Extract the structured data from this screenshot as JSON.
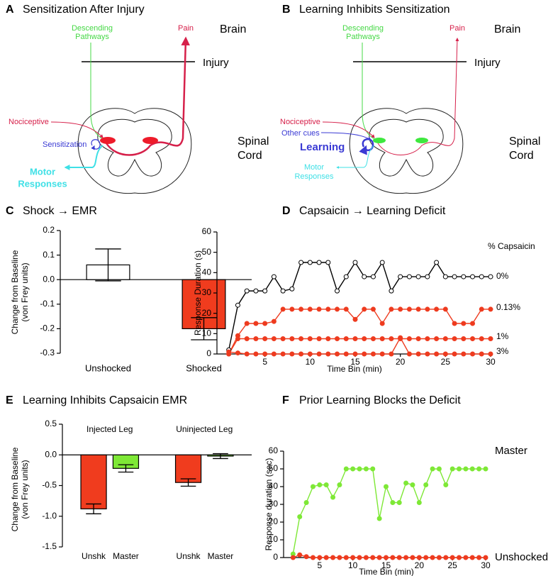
{
  "diagrams": [
    {
      "panel": "A",
      "title": "Sensitization After Injury",
      "descending": [
        "Descending",
        "Pathways"
      ],
      "pain": "Pain",
      "brain": "Brain",
      "injury": "Injury",
      "nociceptive": "Nociceptive",
      "sensitization": "Sensitization",
      "motor": [
        "Motor",
        "Responses"
      ],
      "spinal": [
        "Spinal",
        "Cord"
      ]
    },
    {
      "panel": "B",
      "title": "Learning Inhibits Sensitization",
      "descending": [
        "Descending",
        "Pathways"
      ],
      "pain": "Pain",
      "brain": "Brain",
      "injury": "Injury",
      "nociceptive": "Nociceptive",
      "other_cues": "Other cues",
      "learning": "Learning",
      "motor": [
        "Motor",
        "Responses"
      ],
      "spinal": [
        "Spinal",
        "Cord"
      ]
    }
  ],
  "chart_data": [
    {
      "type": "bar",
      "panel": "C",
      "title": "Shock → EMR",
      "ylabel": [
        "Change from Baseline",
        "(von Frey units)"
      ],
      "categories": [
        "Unshocked",
        "Shocked"
      ],
      "values": [
        0.06,
        -0.2
      ],
      "errors": [
        0.065,
        0.045
      ],
      "colors": [
        "#ffffff",
        "#f03c1e"
      ],
      "ylim": [
        -0.3,
        0.2
      ],
      "yticks": [
        0.2,
        0.1,
        {
          "value": 0,
          "label": "0.0"
        },
        -0.1,
        -0.2,
        -0.3
      ]
    },
    {
      "type": "line",
      "panel": "D",
      "title": "Capsaicin → Learning Deficit",
      "xlabel": "Time Bin (min)",
      "ylabel": "Response Duration (s)",
      "legend_title": "% Capsaicin",
      "x": [
        1,
        2,
        3,
        4,
        5,
        6,
        7,
        8,
        9,
        10,
        11,
        12,
        13,
        14,
        15,
        16,
        17,
        18,
        19,
        20,
        21,
        22,
        23,
        24,
        25,
        26,
        27,
        28,
        29,
        30
      ],
      "series": [
        {
          "name": "0%",
          "color": "#000000",
          "marker_face": "#ffffff",
          "values": [
            2,
            24,
            31,
            31,
            31,
            38,
            31,
            32,
            45,
            45,
            45,
            45,
            31,
            38,
            45,
            38,
            38,
            45,
            31,
            38,
            38,
            38,
            38,
            45,
            38,
            38,
            38,
            38,
            38,
            38
          ]
        },
        {
          "name": "0.13%",
          "color": "#ee3b1f",
          "marker_face": "#ee3b1f",
          "values": [
            0,
            9,
            15,
            15,
            15,
            16,
            22,
            22,
            22,
            22,
            22,
            22,
            22,
            22,
            17,
            22,
            22,
            15,
            22,
            22,
            22,
            22,
            22,
            22,
            22,
            15,
            15,
            15,
            22,
            22
          ]
        },
        {
          "name": "1%",
          "color": "#ee3b1f",
          "marker_face": "#ee3b1f",
          "values": [
            0,
            7.5,
            7.5,
            7.5,
            7.5,
            7.5,
            7.5,
            7.5,
            7.5,
            7.5,
            7.5,
            7.5,
            7.5,
            7.5,
            7.5,
            7.5,
            7.5,
            7.5,
            7.5,
            7.5,
            7.5,
            7.5,
            7.5,
            7.5,
            7.5,
            7.5,
            7.5,
            7.5,
            7.5,
            7.5
          ]
        },
        {
          "name": "3%",
          "color": "#ee3b1f",
          "marker_face": "#ee3b1f",
          "values": [
            1,
            0.5,
            0,
            0,
            0,
            0,
            0,
            0,
            0,
            0,
            0,
            0,
            0,
            0,
            0,
            0,
            0,
            0,
            0,
            8,
            0,
            0,
            0,
            0,
            0,
            0,
            0,
            0,
            0,
            0
          ]
        }
      ],
      "xlim": [
        0,
        30
      ],
      "xticks": [
        5,
        10,
        15,
        20,
        25,
        30
      ],
      "ylim": [
        0,
        60
      ],
      "yticks": [
        0,
        10,
        20,
        30,
        40,
        50,
        60
      ]
    },
    {
      "type": "bar",
      "panel": "E",
      "title": "Learning Inhibits Capsaicin EMR",
      "ylabel": [
        "Change from Baseline",
        "(von Frey units)"
      ],
      "categories": [
        "Injected Leg",
        "Uninjected Leg"
      ],
      "series": [
        {
          "name": "Unshk",
          "color": "#f03c1e",
          "values": [
            -0.88,
            -0.45
          ],
          "errors": [
            0.08,
            0.06
          ]
        },
        {
          "name": "Master",
          "color": "#7ee836",
          "values": [
            -0.22,
            -0.02
          ],
          "errors": [
            0.06,
            0.04
          ]
        }
      ],
      "ylim": [
        -1.5,
        0.5
      ],
      "yticks": [
        0.5,
        {
          "value": 0,
          "label": "0.0"
        },
        -0.5,
        {
          "value": -1,
          "label": "-1.0"
        },
        -1.5
      ]
    },
    {
      "type": "line",
      "panel": "F",
      "title": "Prior Learning Blocks the Deficit",
      "xlabel": "Time Bin (min)",
      "ylabel": "Response duration (sec)",
      "x": [
        1,
        2,
        3,
        4,
        5,
        6,
        7,
        8,
        9,
        10,
        11,
        12,
        13,
        14,
        15,
        16,
        17,
        18,
        19,
        20,
        21,
        22,
        23,
        24,
        25,
        26,
        27,
        28,
        29,
        30
      ],
      "series": [
        {
          "name": "Master",
          "color": "#7ee836",
          "marker_face": "#7ee836",
          "values": [
            2,
            23,
            31,
            40,
            41,
            41,
            34,
            41,
            50,
            50,
            50,
            50,
            50,
            22,
            40,
            31,
            31,
            42,
            41,
            31,
            41,
            50,
            50,
            41,
            50,
            50,
            50,
            50,
            50,
            50
          ]
        },
        {
          "name": "Unshocked",
          "color": "#ee3b1f",
          "marker_face": "#ee3b1f",
          "values": [
            0,
            1.5,
            0.5,
            0,
            0,
            0,
            0,
            0,
            0,
            0,
            0,
            0,
            0,
            0,
            0,
            0,
            0,
            0,
            0,
            0,
            0,
            0,
            0,
            0,
            0,
            0,
            0,
            0,
            0,
            0
          ]
        }
      ],
      "xlim": [
        0,
        30
      ],
      "xticks": [
        5,
        10,
        15,
        20,
        25,
        30
      ],
      "ylim": [
        0,
        60
      ],
      "yticks": [
        0,
        10,
        20,
        30,
        40,
        50,
        60
      ]
    }
  ]
}
